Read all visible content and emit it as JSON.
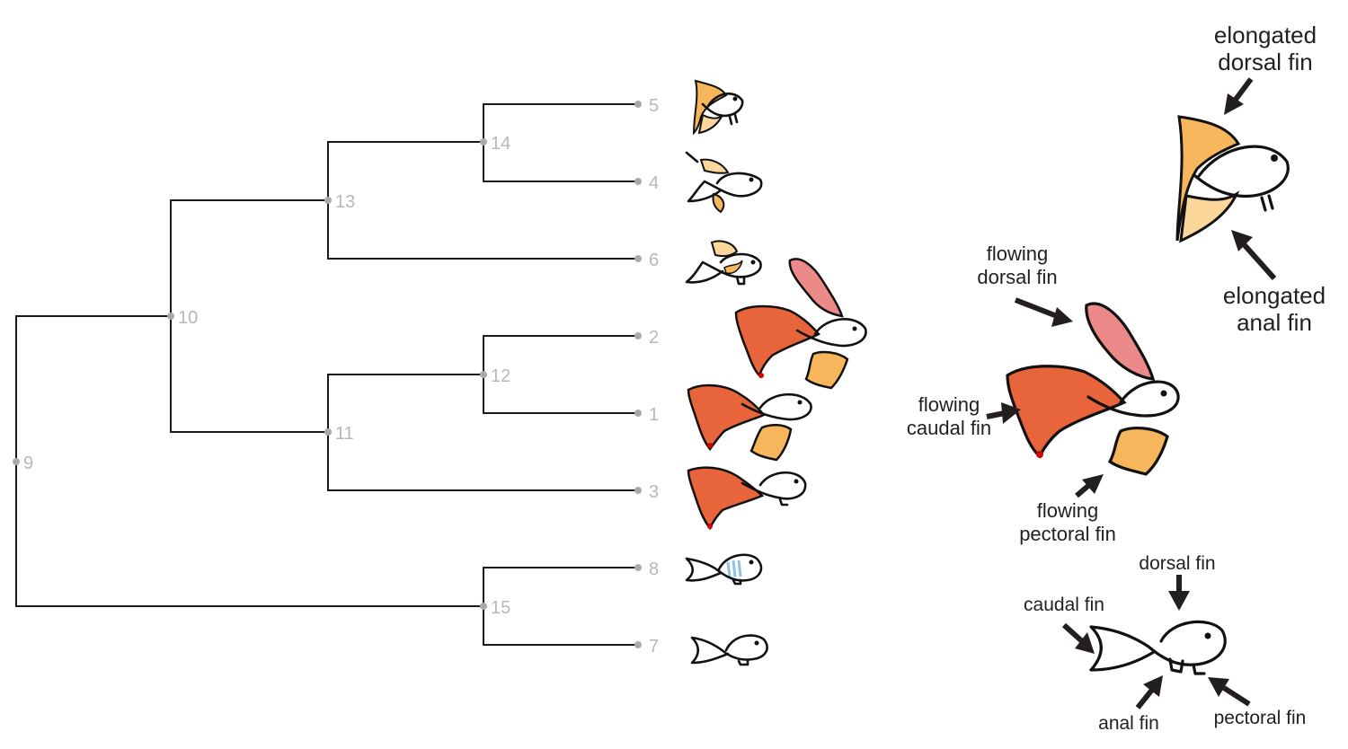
{
  "tree": {
    "nodes": [
      {
        "id": "9",
        "kind": "internal"
      },
      {
        "id": "10",
        "kind": "internal"
      },
      {
        "id": "11",
        "kind": "internal"
      },
      {
        "id": "12",
        "kind": "internal"
      },
      {
        "id": "13",
        "kind": "internal"
      },
      {
        "id": "14",
        "kind": "internal"
      },
      {
        "id": "15",
        "kind": "internal"
      },
      {
        "id": "1",
        "kind": "leaf",
        "fish": "flowing-fins"
      },
      {
        "id": "2",
        "kind": "leaf",
        "fish": "flowing-fins"
      },
      {
        "id": "3",
        "kind": "leaf",
        "fish": "flowing-caudal"
      },
      {
        "id": "4",
        "kind": "leaf",
        "fish": "elongated-fins"
      },
      {
        "id": "5",
        "kind": "leaf",
        "fish": "elongated-fins"
      },
      {
        "id": "6",
        "kind": "leaf",
        "fish": "elongated-fins"
      },
      {
        "id": "7",
        "kind": "leaf",
        "fish": "plain"
      },
      {
        "id": "8",
        "kind": "leaf",
        "fish": "striped"
      }
    ],
    "edges": [
      [
        "9",
        "10"
      ],
      [
        "9",
        "15"
      ],
      [
        "10",
        "13"
      ],
      [
        "10",
        "11"
      ],
      [
        "13",
        "14"
      ],
      [
        "13",
        "6"
      ],
      [
        "14",
        "5"
      ],
      [
        "14",
        "4"
      ],
      [
        "11",
        "12"
      ],
      [
        "11",
        "3"
      ],
      [
        "12",
        "2"
      ],
      [
        "12",
        "1"
      ],
      [
        "15",
        "8"
      ],
      [
        "15",
        "7"
      ]
    ]
  },
  "annotations": {
    "elongated": {
      "dorsal": [
        "elongated",
        "dorsal fin"
      ],
      "anal": [
        "elongated",
        "anal fin"
      ]
    },
    "flowing": {
      "dorsal": [
        "flowing",
        "dorsal fin"
      ],
      "caudal": [
        "flowing",
        "caudal fin"
      ],
      "pectoral": [
        "flowing",
        "pectoral fin"
      ]
    },
    "basic": {
      "dorsal": "dorsal fin",
      "caudal": "caudal fin",
      "anal": "anal fin",
      "pectoral": "pectoral fin"
    }
  },
  "colors": {
    "edge": "#1a1a1a",
    "node_label": "#b8b8b8",
    "orange_fin": "#f7b55c",
    "orange_light": "#fbd79b",
    "red_fin": "#e8643a",
    "pink_fin": "#ec8a8a",
    "blue_stripe": "#8fc2e6",
    "annotation": "#231f20"
  }
}
